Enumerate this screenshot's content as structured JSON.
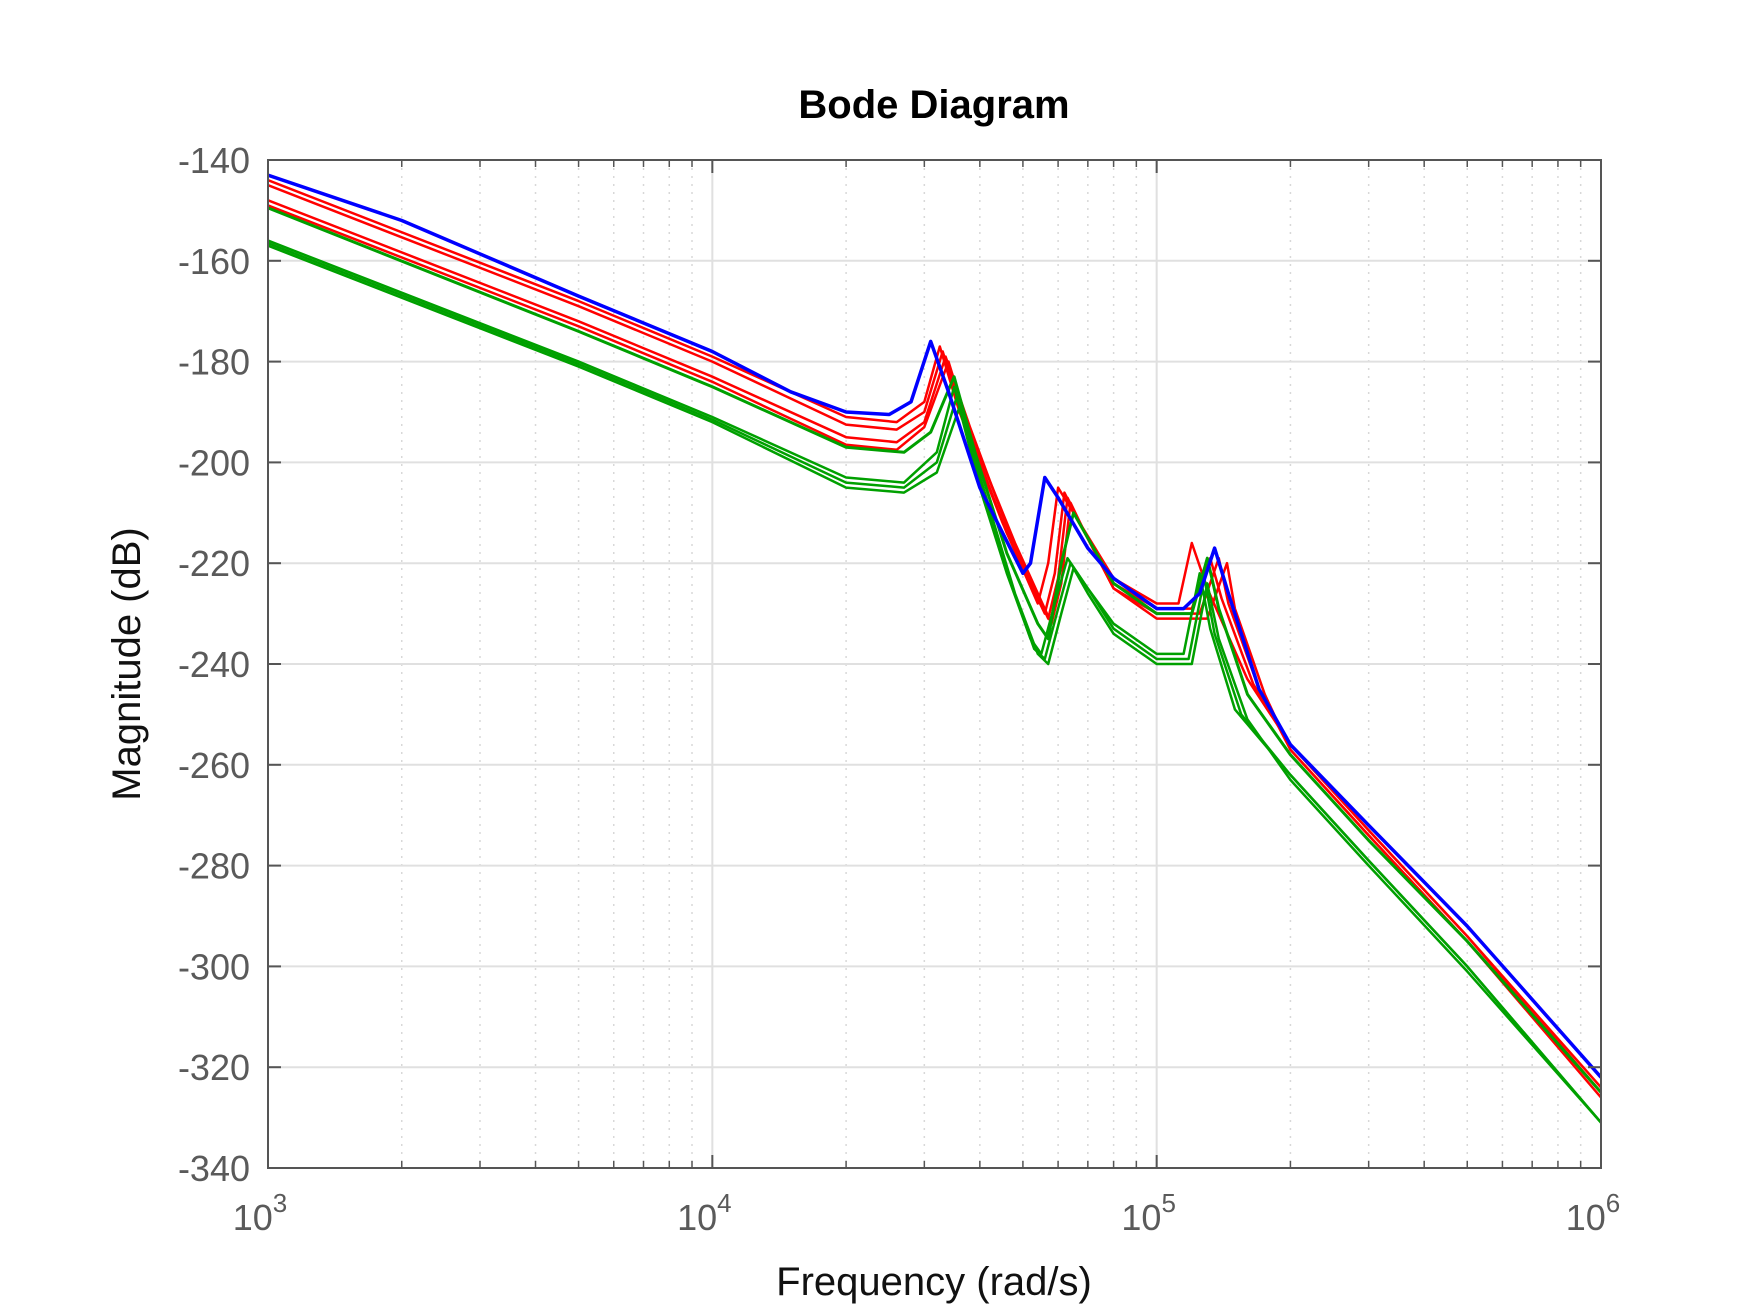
{
  "chart_data": {
    "type": "line",
    "title": "Bode Diagram",
    "xlabel": "Frequency  (rad/s)",
    "ylabel": "Magnitude (dB)",
    "xscale": "log",
    "xlim": [
      1000,
      1000000
    ],
    "ylim": [
      -340,
      -140
    ],
    "xticks": [
      1000,
      10000,
      100000,
      1000000
    ],
    "xtick_labels": [
      {
        "base": "10",
        "exp": "3"
      },
      {
        "base": "10",
        "exp": "4"
      },
      {
        "base": "10",
        "exp": "5"
      },
      {
        "base": "10",
        "exp": "6"
      }
    ],
    "yticks": [
      -140,
      -160,
      -180,
      -200,
      -220,
      -240,
      -260,
      -280,
      -300,
      -320,
      -340
    ],
    "grid": true,
    "minor_grid": true,
    "series": [
      {
        "color": "#ff0000",
        "width": 2.5,
        "points": [
          [
            1000.0,
            -144
          ],
          [
            5000.0,
            -168
          ],
          [
            10000.0,
            -179
          ],
          [
            20000.0,
            -191
          ],
          [
            26000.0,
            -192
          ],
          [
            30000.0,
            -188
          ],
          [
            32500.0,
            -177
          ],
          [
            36000.0,
            -190
          ],
          [
            45000.0,
            -212
          ],
          [
            54000.0,
            -228
          ],
          [
            57000.0,
            -220
          ],
          [
            60000.0,
            -205
          ],
          [
            65000.0,
            -210
          ],
          [
            80000.0,
            -223
          ],
          [
            100000.0,
            -228
          ],
          [
            112000.0,
            -228
          ],
          [
            120000.0,
            -216
          ],
          [
            130000.0,
            -225
          ],
          [
            160000.0,
            -243
          ],
          [
            200000.0,
            -256
          ],
          [
            300000.0,
            -273
          ],
          [
            500000.0,
            -294
          ],
          [
            1000000.0,
            -324
          ]
        ]
      },
      {
        "color": "#ff0000",
        "width": 2.5,
        "points": [
          [
            1000.0,
            -145
          ],
          [
            5000.0,
            -169
          ],
          [
            10000.0,
            -180
          ],
          [
            20000.0,
            -192.5
          ],
          [
            26000.0,
            -193.5
          ],
          [
            30000.0,
            -190
          ],
          [
            33000.0,
            -178
          ],
          [
            37000.0,
            -192
          ],
          [
            46000.0,
            -214
          ],
          [
            56000.0,
            -230
          ],
          [
            59000.0,
            -222
          ],
          [
            62000.0,
            -206
          ],
          [
            67000.0,
            -212
          ],
          [
            80000.0,
            -224
          ],
          [
            100000.0,
            -229
          ],
          [
            120000.0,
            -229
          ],
          [
            132000.0,
            -219
          ],
          [
            140000.0,
            -227
          ],
          [
            165000.0,
            -244
          ],
          [
            200000.0,
            -256
          ],
          [
            300000.0,
            -273
          ],
          [
            500000.0,
            -294
          ],
          [
            1000000.0,
            -325
          ]
        ]
      },
      {
        "color": "#ff0000",
        "width": 2.5,
        "points": [
          [
            1000.0,
            -148
          ],
          [
            5000.0,
            -172
          ],
          [
            10000.0,
            -183
          ],
          [
            20000.0,
            -195
          ],
          [
            26000.0,
            -196
          ],
          [
            30000.0,
            -192
          ],
          [
            33500.0,
            -179
          ],
          [
            38000.0,
            -193
          ],
          [
            47000.0,
            -215
          ],
          [
            57000.0,
            -231
          ],
          [
            60000.0,
            -223
          ],
          [
            63000.0,
            -207
          ],
          [
            68000.0,
            -213
          ],
          [
            80000.0,
            -225
          ],
          [
            100000.0,
            -230
          ],
          [
            125000.0,
            -230
          ],
          [
            138000.0,
            -219
          ],
          [
            145000.0,
            -228
          ],
          [
            170000.0,
            -245
          ],
          [
            200000.0,
            -257
          ],
          [
            300000.0,
            -274
          ],
          [
            500000.0,
            -295
          ],
          [
            1000000.0,
            -325
          ]
        ]
      },
      {
        "color": "#ff0000",
        "width": 2.5,
        "points": [
          [
            1000.0,
            -149
          ],
          [
            5000.0,
            -173
          ],
          [
            10000.0,
            -184
          ],
          [
            20000.0,
            -196.5
          ],
          [
            26000.0,
            -197.5
          ],
          [
            30000.0,
            -193
          ],
          [
            34000.0,
            -180
          ],
          [
            38000.0,
            -194
          ],
          [
            48000.0,
            -216
          ],
          [
            58000.0,
            -232
          ],
          [
            61000.0,
            -224
          ],
          [
            64000.0,
            -208
          ],
          [
            69000.0,
            -214
          ],
          [
            80000.0,
            -225
          ],
          [
            100000.0,
            -231
          ],
          [
            130000.0,
            -231
          ],
          [
            144000.0,
            -220
          ],
          [
            150000.0,
            -229
          ],
          [
            175000.0,
            -246
          ],
          [
            200000.0,
            -257
          ],
          [
            300000.0,
            -274
          ],
          [
            500000.0,
            -295
          ],
          [
            1000000.0,
            -326
          ]
        ]
      },
      {
        "color": "#00a000",
        "width": 3,
        "points": [
          [
            1000.0,
            -149.5
          ],
          [
            5000.0,
            -174
          ],
          [
            10000.0,
            -185
          ],
          [
            20000.0,
            -197
          ],
          [
            27000.0,
            -198
          ],
          [
            31000.0,
            -194
          ],
          [
            35000.0,
            -183
          ],
          [
            39000.0,
            -198
          ],
          [
            46000.0,
            -218
          ],
          [
            54000.0,
            -232
          ],
          [
            57000.0,
            -235
          ],
          [
            61000.0,
            -220
          ],
          [
            65000.0,
            -210
          ],
          [
            70000.0,
            -215
          ],
          [
            80000.0,
            -224
          ],
          [
            100000.0,
            -230
          ],
          [
            120000.0,
            -230
          ],
          [
            130000.0,
            -219
          ],
          [
            138000.0,
            -229
          ],
          [
            160000.0,
            -246
          ],
          [
            200000.0,
            -258
          ],
          [
            300000.0,
            -275
          ],
          [
            500000.0,
            -295
          ],
          [
            1000000.0,
            -325
          ]
        ]
      },
      {
        "color": "#00a000",
        "width": 2.5,
        "points": [
          [
            1000.0,
            -156
          ],
          [
            5000.0,
            -180
          ],
          [
            10000.0,
            -191
          ],
          [
            20000.0,
            -203
          ],
          [
            27000.0,
            -204
          ],
          [
            32000.0,
            -198
          ],
          [
            35000.0,
            -185
          ],
          [
            40000.0,
            -205
          ],
          [
            46000.0,
            -222
          ],
          [
            52000.0,
            -235
          ],
          [
            55000.0,
            -238
          ],
          [
            59000.0,
            -228
          ],
          [
            63000.0,
            -219
          ],
          [
            70000.0,
            -225
          ],
          [
            80000.0,
            -232
          ],
          [
            100000.0,
            -238
          ],
          [
            115000.0,
            -238
          ],
          [
            125000.0,
            -222
          ],
          [
            132000.0,
            -233
          ],
          [
            150000.0,
            -249
          ],
          [
            200000.0,
            -262
          ],
          [
            300000.0,
            -279
          ],
          [
            500000.0,
            -300
          ],
          [
            1000000.0,
            -331
          ]
        ]
      },
      {
        "color": "#00a000",
        "width": 2.5,
        "points": [
          [
            1000.0,
            -156.5
          ],
          [
            5000.0,
            -180.5
          ],
          [
            10000.0,
            -191.5
          ],
          [
            20000.0,
            -204
          ],
          [
            27000.0,
            -205
          ],
          [
            32000.0,
            -200
          ],
          [
            35500.0,
            -187
          ],
          [
            41000.0,
            -207
          ],
          [
            47000.0,
            -224
          ],
          [
            53000.0,
            -237
          ],
          [
            56000.0,
            -239
          ],
          [
            60000.0,
            -229
          ],
          [
            64000.0,
            -220
          ],
          [
            70000.0,
            -225
          ],
          [
            80000.0,
            -233
          ],
          [
            100000.0,
            -239
          ],
          [
            118000.0,
            -239
          ],
          [
            128000.0,
            -223
          ],
          [
            135000.0,
            -234
          ],
          [
            155000.0,
            -250
          ],
          [
            200000.0,
            -262
          ],
          [
            300000.0,
            -279
          ],
          [
            500000.0,
            -300
          ],
          [
            1000000.0,
            -331
          ]
        ]
      },
      {
        "color": "#00a000",
        "width": 2.5,
        "points": [
          [
            1000.0,
            -157
          ],
          [
            5000.0,
            -181
          ],
          [
            10000.0,
            -192
          ],
          [
            20000.0,
            -205
          ],
          [
            27000.0,
            -206
          ],
          [
            32000.0,
            -202
          ],
          [
            36000.0,
            -189
          ],
          [
            42000.0,
            -209
          ],
          [
            48000.0,
            -226
          ],
          [
            54000.0,
            -238
          ],
          [
            57000.0,
            -240
          ],
          [
            61000.0,
            -230
          ],
          [
            65000.0,
            -221
          ],
          [
            70000.0,
            -226
          ],
          [
            80000.0,
            -234
          ],
          [
            100000.0,
            -240
          ],
          [
            120000.0,
            -240
          ],
          [
            130000.0,
            -224
          ],
          [
            138000.0,
            -235
          ],
          [
            160000.0,
            -251
          ],
          [
            200000.0,
            -263
          ],
          [
            300000.0,
            -280
          ],
          [
            500000.0,
            -301
          ],
          [
            1000000.0,
            -331
          ]
        ]
      },
      {
        "color": "#0000ff",
        "width": 3.5,
        "points": [
          [
            1000.0,
            -143
          ],
          [
            2000.0,
            -152
          ],
          [
            5000.0,
            -167
          ],
          [
            10000.0,
            -178
          ],
          [
            15000.0,
            -186
          ],
          [
            20000.0,
            -190
          ],
          [
            25000.0,
            -190.5
          ],
          [
            28000.0,
            -188
          ],
          [
            31000.0,
            -176
          ],
          [
            34000.0,
            -186
          ],
          [
            40000.0,
            -205
          ],
          [
            50000.0,
            -222
          ],
          [
            52000.0,
            -220
          ],
          [
            56000.0,
            -203
          ],
          [
            60000.0,
            -207
          ],
          [
            70000.0,
            -217
          ],
          [
            80000.0,
            -223
          ],
          [
            100000.0,
            -229
          ],
          [
            115000.0,
            -229
          ],
          [
            125000.0,
            -226
          ],
          [
            135000.0,
            -217
          ],
          [
            145000.0,
            -226
          ],
          [
            170000.0,
            -245
          ],
          [
            200000.0,
            -256
          ],
          [
            300000.0,
            -272
          ],
          [
            500000.0,
            -292
          ],
          [
            1000000.0,
            -322
          ]
        ]
      }
    ],
    "colors": {
      "blue": "#0000ff",
      "red": "#ff0000",
      "green": "#00a000"
    }
  }
}
